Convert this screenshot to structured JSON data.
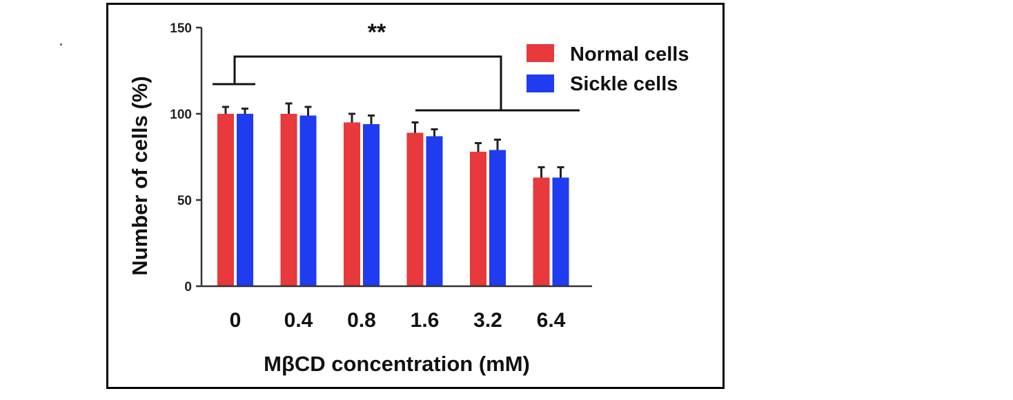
{
  "chart_data": {
    "type": "bar",
    "categories": [
      "0",
      "0.4",
      "0.8",
      "1.6",
      "3.2",
      "6.4"
    ],
    "series": [
      {
        "name": "Normal cells",
        "color": "#e8393c",
        "values": [
          100,
          100,
          95,
          89,
          78,
          63
        ],
        "errors": [
          4,
          6,
          5,
          6,
          5,
          6
        ]
      },
      {
        "name": "Sickle cells",
        "color": "#1f3cf0",
        "values": [
          100,
          99,
          94,
          87,
          79,
          63
        ],
        "errors": [
          3,
          5,
          5,
          4,
          6,
          6
        ]
      }
    ],
    "xlabel": "MβCD concentration (mM)",
    "ylabel": "Number of cells (%)",
    "ylim": [
      0,
      150
    ],
    "yticks": [
      "0",
      "50",
      "100",
      "150"
    ],
    "legend_position": "top-right",
    "grid": false,
    "annotation": "**"
  }
}
